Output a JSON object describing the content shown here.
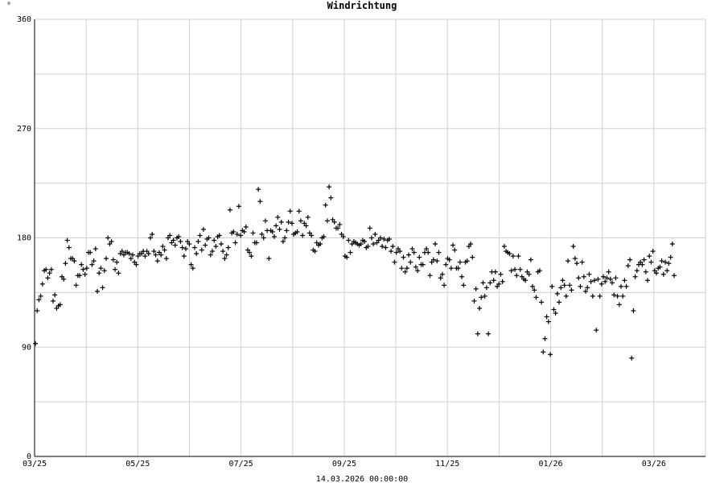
{
  "chart_data": {
    "type": "scatter",
    "title": "Windrichtung",
    "unit": "°",
    "footer": "14.03.2026 00:00:00",
    "marker": "+",
    "grid": true,
    "ylim": [
      0,
      360
    ],
    "y_ticks": [
      "0",
      "90",
      "180",
      "270",
      "360"
    ],
    "x_ticks": [
      "03/25",
      "05/25",
      "07/25",
      "09/25",
      "11/25",
      "01/26",
      "03/26"
    ],
    "colors": {
      "grid": "#d0d0d0",
      "axis": "#000000",
      "marker": "#000000"
    },
    "series": [
      {
        "values": [
          93,
          120,
          129,
          132,
          142,
          153,
          154,
          147,
          151,
          154,
          128,
          133,
          122,
          124,
          125,
          148,
          146,
          159,
          178,
          172,
          163,
          163,
          161,
          141,
          149,
          149,
          158,
          154,
          150,
          155,
          168,
          168,
          158,
          161,
          171,
          136,
          151,
          155,
          139,
          153,
          163,
          180,
          175,
          177,
          162,
          154,
          160,
          151,
          167,
          169,
          166,
          168,
          168,
          167,
          163,
          166,
          160,
          158,
          165,
          167,
          167,
          169,
          165,
          169,
          167,
          180,
          183,
          169,
          166,
          161,
          168,
          166,
          173,
          170,
          163,
          180,
          182,
          176,
          178,
          174,
          180,
          181,
          177,
          172,
          165,
          171,
          177,
          175,
          158,
          155,
          172,
          167,
          177,
          182,
          170,
          187,
          174,
          179,
          180,
          166,
          169,
          178,
          173,
          181,
          182,
          175,
          169,
          163,
          166,
          172,
          203,
          184,
          185,
          176,
          183,
          206,
          182,
          186,
          185,
          189,
          170,
          168,
          165,
          184,
          176,
          176,
          220,
          210,
          183,
          180,
          194,
          186,
          163,
          186,
          185,
          181,
          190,
          197,
          187,
          193,
          177,
          180,
          186,
          193,
          202,
          192,
          183,
          184,
          185,
          202,
          194,
          182,
          192,
          190,
          197,
          184,
          182,
          170,
          169,
          176,
          174,
          175,
          180,
          181,
          207,
          194,
          222,
          213,
          195,
          193,
          188,
          188,
          191,
          183,
          181,
          165,
          164,
          178,
          168,
          175,
          177,
          176,
          175,
          174,
          175,
          178,
          177,
          172,
          173,
          188,
          180,
          175,
          183,
          176,
          178,
          180,
          173,
          179,
          172,
          178,
          179,
          169,
          173,
          160,
          168,
          171,
          169,
          155,
          164,
          152,
          155,
          166,
          160,
          171,
          168,
          156,
          153,
          164,
          158,
          158,
          168,
          171,
          168,
          149,
          160,
          162,
          175,
          161,
          168,
          147,
          150,
          141,
          158,
          163,
          162,
          155,
          174,
          170,
          155,
          155,
          160,
          148,
          141,
          160,
          161,
          173,
          175,
          164,
          128,
          138,
          101,
          122,
          131,
          143,
          132,
          139,
          101,
          143,
          152,
          145,
          152,
          140,
          142,
          150,
          144,
          173,
          169,
          168,
          167,
          153,
          165,
          154,
          149,
          165,
          154,
          148,
          146,
          145,
          152,
          150,
          162,
          140,
          137,
          131,
          152,
          153,
          127,
          86,
          97,
          115,
          111,
          84,
          140,
          121,
          118,
          134,
          127,
          139,
          145,
          141,
          132,
          161,
          141,
          137,
          173,
          163,
          159,
          147,
          140,
          160,
          148,
          136,
          139,
          150,
          144,
          132,
          145,
          104,
          146,
          132,
          142,
          148,
          144,
          147,
          152,
          146,
          143,
          133,
          147,
          132,
          125,
          140,
          132,
          145,
          140,
          157,
          162,
          81,
          120,
          148,
          153,
          158,
          160,
          158,
          162,
          152,
          145,
          165,
          160,
          169,
          153,
          151,
          155,
          156,
          161,
          150,
          160,
          153,
          159,
          164,
          175,
          149
        ]
      }
    ]
  }
}
